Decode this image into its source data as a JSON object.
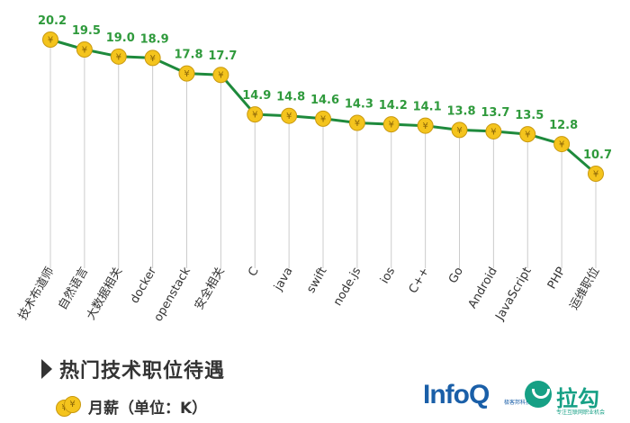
{
  "chart_data": {
    "type": "line",
    "title": "热门技术职位待遇",
    "legend": "月薪（单位：K）",
    "coin_symbol": "¥",
    "categories": [
      "技术布道师",
      "自然语言",
      "大数据相关",
      "docker",
      "openstack",
      "安全相关",
      "C",
      "java",
      "swift",
      "node.js",
      "ios",
      "C++",
      "Go",
      "Android",
      "JavaScript",
      "PHP",
      "运维职位"
    ],
    "values": [
      20.2,
      19.5,
      19.0,
      18.9,
      17.8,
      17.7,
      14.9,
      14.8,
      14.6,
      14.3,
      14.2,
      14.1,
      13.8,
      13.7,
      13.5,
      12.8,
      10.7
    ],
    "ylim": [
      10.7,
      20.2
    ],
    "line_color": "#1e8a3c",
    "label_color": "#2f9a3c",
    "coin_color": "#f4c41d",
    "drop_line_color": "#cccccc"
  },
  "logos": {
    "infoq": "InfoQ",
    "infoq_sub": "极客邦科技",
    "lagou": "拉勾",
    "lagou_sub": "专注互联网职业机会"
  }
}
